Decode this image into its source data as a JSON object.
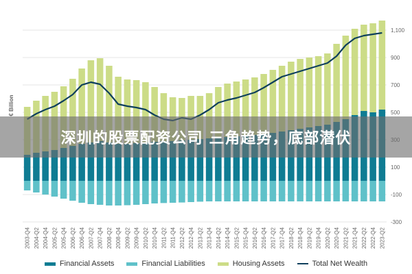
{
  "chart_data": {
    "type": "bar",
    "title": "",
    "xlabel": "",
    "ylabel": "€ Billion",
    "ylim": [
      -300,
      1200
    ],
    "yticks": [
      -300,
      -100,
      100,
      300,
      500,
      700,
      900,
      1100
    ],
    "ytick_labels": [
      "-300",
      "-100",
      "100",
      "300",
      "500",
      "700",
      "900",
      "1,100"
    ],
    "grid": true,
    "legend_position": "bottom",
    "categories": [
      "2003-Q4",
      "2004-Q2",
      "2004-Q4",
      "2005-Q2",
      "2005-Q4",
      "2006-Q2",
      "2006-Q4",
      "2007-Q2",
      "2007-Q4",
      "2008-Q2",
      "2008-Q4",
      "2009-Q2",
      "2009-Q4",
      "2010-Q2",
      "2010-Q4",
      "2011-Q2",
      "2011-Q4",
      "2012-Q2",
      "2012-Q4",
      "2013-Q2",
      "2013-Q4",
      "2014-Q2",
      "2014-Q4",
      "2015-Q2",
      "2015-Q4",
      "2016-Q2",
      "2016-Q4",
      "2017-Q2",
      "2017-Q4",
      "2018-Q2",
      "2018-Q4",
      "2019-Q2",
      "2019-Q4",
      "2020-Q2",
      "2020-Q4",
      "2021-Q2",
      "2021-Q4",
      "2022-Q2",
      "2022-Q4",
      "2023-Q2"
    ],
    "series": [
      {
        "name": "Financial Assets",
        "kind": "bar",
        "color": "#0f7c93",
        "values": [
          190,
          205,
          215,
          225,
          240,
          255,
          270,
          280,
          290,
          280,
          270,
          270,
          275,
          280,
          285,
          290,
          290,
          295,
          300,
          305,
          310,
          315,
          320,
          325,
          330,
          335,
          340,
          350,
          360,
          370,
          380,
          390,
          400,
          410,
          430,
          450,
          480,
          510,
          500,
          520
        ]
      },
      {
        "name": "Financial Liabilities",
        "kind": "bar",
        "color": "#5fc1c9",
        "values": [
          -70,
          -85,
          -100,
          -115,
          -130,
          -145,
          -160,
          -170,
          -175,
          -180,
          -180,
          -178,
          -175,
          -170,
          -165,
          -162,
          -160,
          -158,
          -155,
          -152,
          -150,
          -150,
          -150,
          -150,
          -150,
          -150,
          -150,
          -150,
          -150,
          -150,
          -150,
          -150,
          -150,
          -150,
          -150,
          -150,
          -150,
          -150,
          -150,
          -150
        ]
      },
      {
        "name": "Housing Assets",
        "kind": "bar",
        "color": "#ccdc87",
        "values": [
          350,
          380,
          405,
          425,
          450,
          490,
          550,
          600,
          605,
          560,
          490,
          470,
          460,
          440,
          400,
          350,
          320,
          310,
          320,
          315,
          330,
          370,
          390,
          400,
          410,
          420,
          440,
          460,
          480,
          500,
          510,
          510,
          510,
          520,
          570,
          610,
          630,
          630,
          650,
          650
        ]
      },
      {
        "name": "Total Net Wealth",
        "kind": "line",
        "color": "#0d3f5c",
        "values": [
          450,
          490,
          520,
          545,
          585,
          630,
          700,
          720,
          705,
          640,
          560,
          545,
          535,
          520,
          480,
          450,
          440,
          460,
          450,
          480,
          520,
          570,
          590,
          605,
          625,
          645,
          680,
          720,
          760,
          780,
          800,
          820,
          840,
          860,
          910,
          990,
          1040,
          1060,
          1070,
          1080
        ]
      }
    ]
  },
  "legend": {
    "items": [
      {
        "label": "Financial Assets",
        "color": "#0f7c93"
      },
      {
        "label": "Financial Liabilities",
        "color": "#5fc1c9"
      },
      {
        "label": "Housing Assets",
        "color": "#ccdc87"
      },
      {
        "label": "Total Net Wealth",
        "color": "#0d3f5c"
      }
    ]
  },
  "overlay": {
    "headline": "深圳的股票配资公司 三角趋势，底部潜伏"
  }
}
